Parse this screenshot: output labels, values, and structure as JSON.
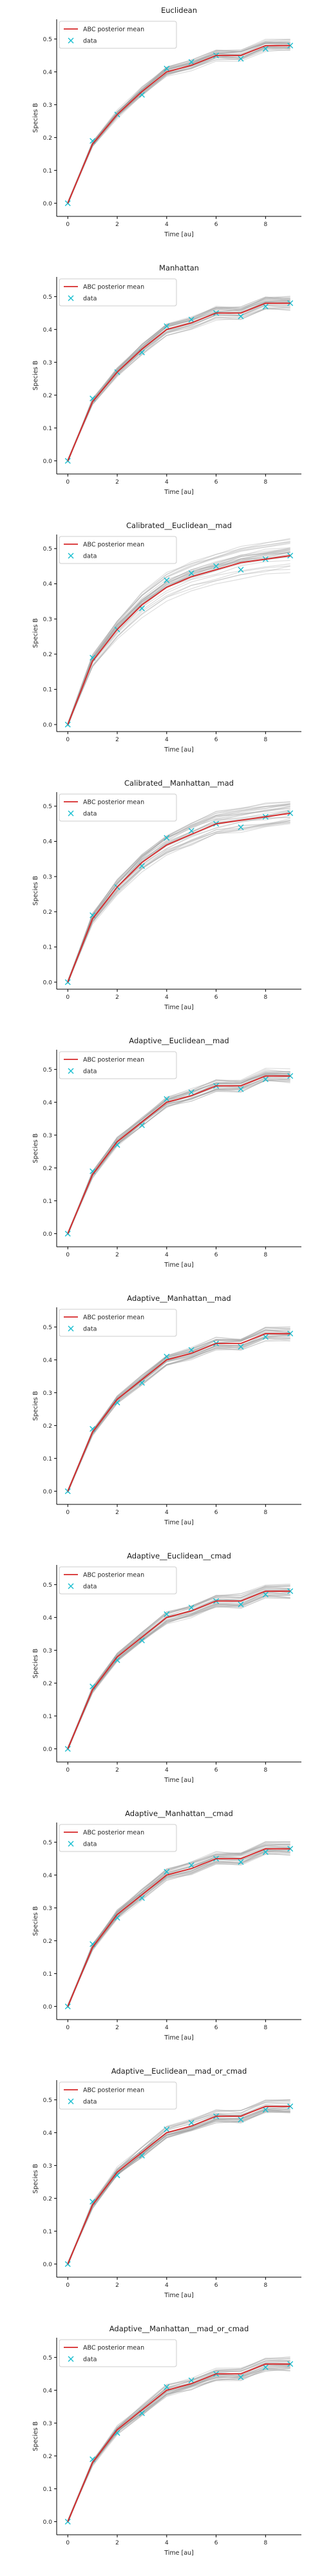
{
  "figure": {
    "panel_count": 10
  },
  "chart_data": [
    {
      "type": "line",
      "title": "Euclidean",
      "xlabel": "Time [au]",
      "ylabel": "Species B",
      "xlim": [
        -0.45,
        9.45
      ],
      "ylim": [
        -0.04,
        0.56
      ],
      "xticks": [
        "0",
        "2",
        "4",
        "6",
        "8"
      ],
      "yticks": [
        "0.0",
        "0.1",
        "0.2",
        "0.3",
        "0.4",
        "0.5"
      ],
      "grid": false,
      "legend": {
        "placement": "top-left",
        "entries": [
          "ABC posterior mean",
          "data"
        ]
      },
      "colors": {
        "mean": "#d62728",
        "data": "#17becf",
        "posterior": "#9e9e9e"
      },
      "x": [
        0,
        1,
        2,
        3,
        4,
        5,
        6,
        7,
        8,
        9
      ],
      "series": [
        {
          "name": "ABC posterior mean",
          "values": [
            0.0,
            0.18,
            0.27,
            0.34,
            0.4,
            0.42,
            0.45,
            0.45,
            0.48,
            0.48
          ]
        },
        {
          "name": "data",
          "values": [
            0.0,
            0.19,
            0.27,
            0.33,
            0.41,
            0.43,
            0.45,
            0.44,
            0.47,
            0.48
          ]
        }
      ],
      "posterior_band": 0.02
    },
    {
      "type": "line",
      "title": "Manhattan",
      "xlabel": "Time [au]",
      "ylabel": "Species B",
      "xlim": [
        -0.45,
        9.45
      ],
      "ylim": [
        -0.04,
        0.56
      ],
      "xticks": [
        "0",
        "2",
        "4",
        "6",
        "8"
      ],
      "yticks": [
        "0.0",
        "0.1",
        "0.2",
        "0.3",
        "0.4",
        "0.5"
      ],
      "grid": false,
      "legend": {
        "placement": "top-left",
        "entries": [
          "ABC posterior mean",
          "data"
        ]
      },
      "colors": {
        "mean": "#d62728",
        "data": "#17becf",
        "posterior": "#9e9e9e"
      },
      "x": [
        0,
        1,
        2,
        3,
        4,
        5,
        6,
        7,
        8,
        9
      ],
      "series": [
        {
          "name": "ABC posterior mean",
          "values": [
            0.0,
            0.18,
            0.27,
            0.34,
            0.4,
            0.42,
            0.45,
            0.45,
            0.48,
            0.48
          ]
        },
        {
          "name": "data",
          "values": [
            0.0,
            0.19,
            0.27,
            0.33,
            0.41,
            0.43,
            0.45,
            0.44,
            0.47,
            0.48
          ]
        }
      ],
      "posterior_band": 0.02
    },
    {
      "type": "line",
      "title": "Calibrated__Euclidean__mad",
      "xlabel": "Time [au]",
      "ylabel": "Species B",
      "xlim": [
        -0.45,
        9.45
      ],
      "ylim": [
        -0.02,
        0.54
      ],
      "xticks": [
        "0",
        "2",
        "4",
        "6",
        "8"
      ],
      "yticks": [
        "0.0",
        "0.1",
        "0.2",
        "0.3",
        "0.4",
        "0.5"
      ],
      "grid": false,
      "legend": {
        "placement": "top-left",
        "entries": [
          "ABC posterior mean",
          "data"
        ]
      },
      "colors": {
        "mean": "#d62728",
        "data": "#17becf",
        "posterior": "#9e9e9e"
      },
      "x": [
        0,
        1,
        2,
        3,
        4,
        5,
        6,
        7,
        8,
        9
      ],
      "series": [
        {
          "name": "ABC posterior mean",
          "values": [
            0.0,
            0.18,
            0.27,
            0.34,
            0.39,
            0.42,
            0.44,
            0.46,
            0.47,
            0.48
          ]
        },
        {
          "name": "data",
          "values": [
            0.0,
            0.19,
            0.27,
            0.33,
            0.41,
            0.43,
            0.45,
            0.44,
            0.47,
            0.48
          ]
        }
      ],
      "posterior_band": 0.05
    },
    {
      "type": "line",
      "title": "Calibrated__Manhattan__mad",
      "xlabel": "Time [au]",
      "ylabel": "Species B",
      "xlim": [
        -0.45,
        9.45
      ],
      "ylim": [
        -0.02,
        0.54
      ],
      "xticks": [
        "0",
        "2",
        "4",
        "6",
        "8"
      ],
      "yticks": [
        "0.0",
        "0.1",
        "0.2",
        "0.3",
        "0.4",
        "0.5"
      ],
      "grid": false,
      "legend": {
        "placement": "top-left",
        "entries": [
          "ABC posterior mean",
          "data"
        ]
      },
      "colors": {
        "mean": "#d62728",
        "data": "#17becf",
        "posterior": "#9e9e9e"
      },
      "x": [
        0,
        1,
        2,
        3,
        4,
        5,
        6,
        7,
        8,
        9
      ],
      "series": [
        {
          "name": "ABC posterior mean",
          "values": [
            0.0,
            0.18,
            0.27,
            0.34,
            0.39,
            0.42,
            0.45,
            0.46,
            0.47,
            0.48
          ]
        },
        {
          "name": "data",
          "values": [
            0.0,
            0.19,
            0.27,
            0.33,
            0.41,
            0.43,
            0.45,
            0.44,
            0.47,
            0.48
          ]
        }
      ],
      "posterior_band": 0.04
    },
    {
      "type": "line",
      "title": "Adaptive__Euclidean__mad",
      "xlabel": "Time [au]",
      "ylabel": "Species B",
      "xlim": [
        -0.45,
        9.45
      ],
      "ylim": [
        -0.04,
        0.56
      ],
      "xticks": [
        "0",
        "2",
        "4",
        "6",
        "8"
      ],
      "yticks": [
        "0.0",
        "0.1",
        "0.2",
        "0.3",
        "0.4",
        "0.5"
      ],
      "grid": false,
      "legend": {
        "placement": "top-left",
        "entries": [
          "ABC posterior mean",
          "data"
        ]
      },
      "colors": {
        "mean": "#d62728",
        "data": "#17becf",
        "posterior": "#9e9e9e"
      },
      "x": [
        0,
        1,
        2,
        3,
        4,
        5,
        6,
        7,
        8,
        9
      ],
      "series": [
        {
          "name": "ABC posterior mean",
          "values": [
            0.0,
            0.18,
            0.28,
            0.34,
            0.4,
            0.42,
            0.45,
            0.45,
            0.48,
            0.48
          ]
        },
        {
          "name": "data",
          "values": [
            0.0,
            0.19,
            0.27,
            0.33,
            0.41,
            0.43,
            0.45,
            0.44,
            0.47,
            0.48
          ]
        }
      ],
      "posterior_band": 0.02
    },
    {
      "type": "line",
      "title": "Adaptive__Manhattan__mad",
      "xlabel": "Time [au]",
      "ylabel": "Species B",
      "xlim": [
        -0.45,
        9.45
      ],
      "ylim": [
        -0.04,
        0.56
      ],
      "xticks": [
        "0",
        "2",
        "4",
        "6",
        "8"
      ],
      "yticks": [
        "0.0",
        "0.1",
        "0.2",
        "0.3",
        "0.4",
        "0.5"
      ],
      "grid": false,
      "legend": {
        "placement": "top-left",
        "entries": [
          "ABC posterior mean",
          "data"
        ]
      },
      "colors": {
        "mean": "#d62728",
        "data": "#17becf",
        "posterior": "#9e9e9e"
      },
      "x": [
        0,
        1,
        2,
        3,
        4,
        5,
        6,
        7,
        8,
        9
      ],
      "series": [
        {
          "name": "ABC posterior mean",
          "values": [
            0.0,
            0.18,
            0.28,
            0.34,
            0.4,
            0.42,
            0.45,
            0.45,
            0.48,
            0.48
          ]
        },
        {
          "name": "data",
          "values": [
            0.0,
            0.19,
            0.27,
            0.33,
            0.41,
            0.43,
            0.45,
            0.44,
            0.47,
            0.48
          ]
        }
      ],
      "posterior_band": 0.02
    },
    {
      "type": "line",
      "title": "Adaptive__Euclidean__cmad",
      "xlabel": "Time [au]",
      "ylabel": "Species B",
      "xlim": [
        -0.45,
        9.45
      ],
      "ylim": [
        -0.04,
        0.56
      ],
      "xticks": [
        "0",
        "2",
        "4",
        "6",
        "8"
      ],
      "yticks": [
        "0.0",
        "0.1",
        "0.2",
        "0.3",
        "0.4",
        "0.5"
      ],
      "grid": false,
      "legend": {
        "placement": "top-left",
        "entries": [
          "ABC posterior mean",
          "data"
        ]
      },
      "colors": {
        "mean": "#d62728",
        "data": "#17becf",
        "posterior": "#9e9e9e"
      },
      "x": [
        0,
        1,
        2,
        3,
        4,
        5,
        6,
        7,
        8,
        9
      ],
      "series": [
        {
          "name": "ABC posterior mean",
          "values": [
            0.0,
            0.18,
            0.28,
            0.34,
            0.4,
            0.42,
            0.45,
            0.45,
            0.48,
            0.48
          ]
        },
        {
          "name": "data",
          "values": [
            0.0,
            0.19,
            0.27,
            0.33,
            0.41,
            0.43,
            0.45,
            0.44,
            0.47,
            0.48
          ]
        }
      ],
      "posterior_band": 0.02
    },
    {
      "type": "line",
      "title": "Adaptive__Manhattan__cmad",
      "xlabel": "Time [au]",
      "ylabel": "Species B",
      "xlim": [
        -0.45,
        9.45
      ],
      "ylim": [
        -0.04,
        0.56
      ],
      "xticks": [
        "0",
        "2",
        "4",
        "6",
        "8"
      ],
      "yticks": [
        "0.0",
        "0.1",
        "0.2",
        "0.3",
        "0.4",
        "0.5"
      ],
      "grid": false,
      "legend": {
        "placement": "top-left",
        "entries": [
          "ABC posterior mean",
          "data"
        ]
      },
      "colors": {
        "mean": "#d62728",
        "data": "#17becf",
        "posterior": "#9e9e9e"
      },
      "x": [
        0,
        1,
        2,
        3,
        4,
        5,
        6,
        7,
        8,
        9
      ],
      "series": [
        {
          "name": "ABC posterior mean",
          "values": [
            0.0,
            0.18,
            0.28,
            0.34,
            0.4,
            0.42,
            0.45,
            0.45,
            0.48,
            0.48
          ]
        },
        {
          "name": "data",
          "values": [
            0.0,
            0.19,
            0.27,
            0.33,
            0.41,
            0.43,
            0.45,
            0.44,
            0.47,
            0.48
          ]
        }
      ],
      "posterior_band": 0.02
    },
    {
      "type": "line",
      "title": "Adaptive__Euclidean__mad_or_cmad",
      "xlabel": "Time [au]",
      "ylabel": "Species B",
      "xlim": [
        -0.45,
        9.45
      ],
      "ylim": [
        -0.04,
        0.56
      ],
      "xticks": [
        "0",
        "2",
        "4",
        "6",
        "8"
      ],
      "yticks": [
        "0.0",
        "0.1",
        "0.2",
        "0.3",
        "0.4",
        "0.5"
      ],
      "grid": false,
      "legend": {
        "placement": "top-left",
        "entries": [
          "ABC posterior mean",
          "data"
        ]
      },
      "colors": {
        "mean": "#d62728",
        "data": "#17becf",
        "posterior": "#9e9e9e"
      },
      "x": [
        0,
        1,
        2,
        3,
        4,
        5,
        6,
        7,
        8,
        9
      ],
      "series": [
        {
          "name": "ABC posterior mean",
          "values": [
            0.0,
            0.18,
            0.28,
            0.34,
            0.4,
            0.42,
            0.45,
            0.45,
            0.48,
            0.48
          ]
        },
        {
          "name": "data",
          "values": [
            0.0,
            0.19,
            0.27,
            0.33,
            0.41,
            0.43,
            0.45,
            0.44,
            0.47,
            0.48
          ]
        }
      ],
      "posterior_band": 0.02
    },
    {
      "type": "line",
      "title": "Adaptive__Manhattan__mad_or_cmad",
      "xlabel": "Time [au]",
      "ylabel": "Species B",
      "xlim": [
        -0.45,
        9.45
      ],
      "ylim": [
        -0.04,
        0.56
      ],
      "xticks": [
        "0",
        "2",
        "4",
        "6",
        "8"
      ],
      "yticks": [
        "0.0",
        "0.1",
        "0.2",
        "0.3",
        "0.4",
        "0.5"
      ],
      "grid": false,
      "legend": {
        "placement": "top-left",
        "entries": [
          "ABC posterior mean",
          "data"
        ]
      },
      "colors": {
        "mean": "#d62728",
        "data": "#17becf",
        "posterior": "#9e9e9e"
      },
      "x": [
        0,
        1,
        2,
        3,
        4,
        5,
        6,
        7,
        8,
        9
      ],
      "series": [
        {
          "name": "ABC posterior mean",
          "values": [
            0.0,
            0.18,
            0.28,
            0.34,
            0.4,
            0.42,
            0.45,
            0.45,
            0.48,
            0.48
          ]
        },
        {
          "name": "data",
          "values": [
            0.0,
            0.19,
            0.27,
            0.33,
            0.41,
            0.43,
            0.45,
            0.44,
            0.47,
            0.48
          ]
        }
      ],
      "posterior_band": 0.02
    }
  ]
}
